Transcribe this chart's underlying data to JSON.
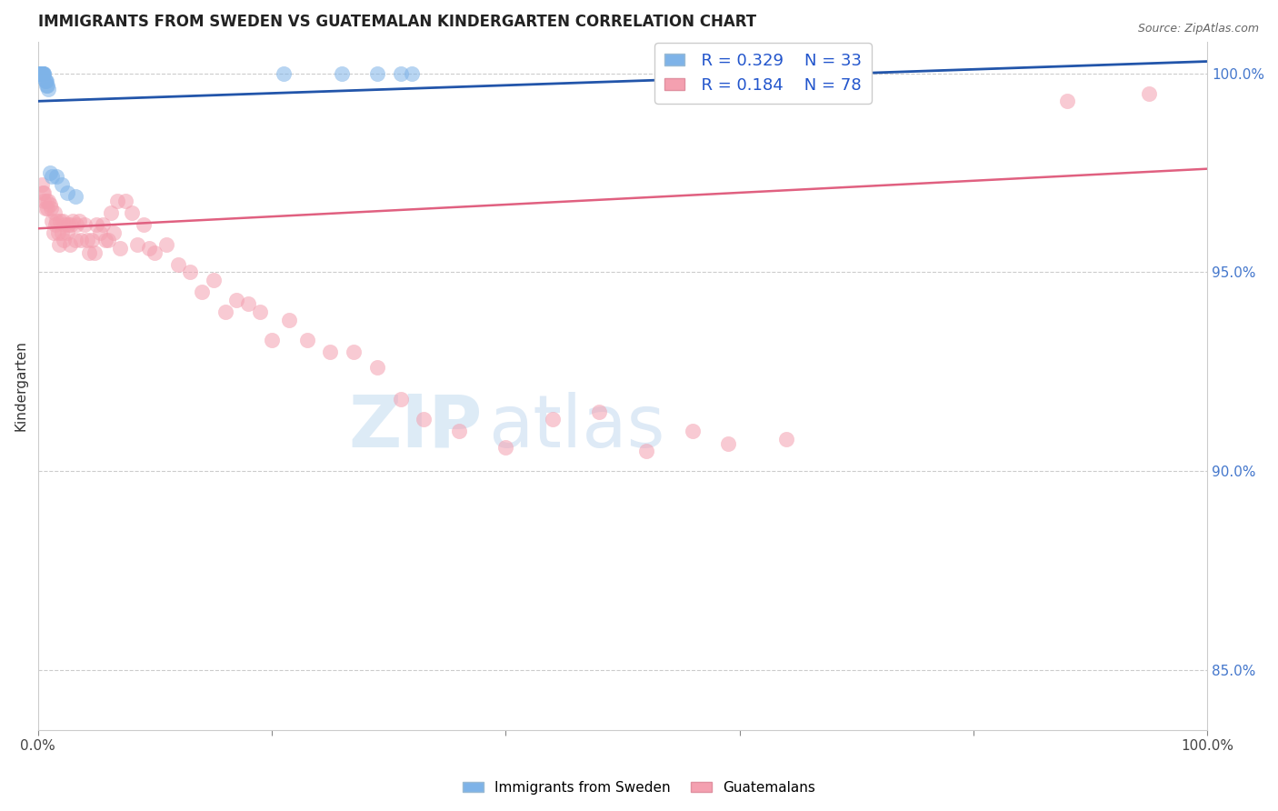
{
  "title": "IMMIGRANTS FROM SWEDEN VS GUATEMALAN KINDERGARTEN CORRELATION CHART",
  "source": "Source: ZipAtlas.com",
  "ylabel": "Kindergarten",
  "legend_blue_r": "R = 0.329",
  "legend_blue_n": "N = 33",
  "legend_pink_r": "R = 0.184",
  "legend_pink_n": "N = 78",
  "blue_color": "#7EB3E8",
  "pink_color": "#F4A0B0",
  "blue_line_color": "#2255AA",
  "pink_line_color": "#E06080",
  "xlim": [
    0.0,
    1.0
  ],
  "ylim": [
    0.835,
    1.008
  ],
  "ytick_positions": [
    0.85,
    0.9,
    0.95,
    1.0
  ],
  "ytick_labels": [
    "85.0%",
    "90.0%",
    "95.0%",
    "100.0%"
  ],
  "xtick_positions": [
    0.0,
    0.2,
    0.4,
    0.6,
    0.8,
    1.0
  ],
  "sweden_x": [
    0.001,
    0.001,
    0.002,
    0.002,
    0.002,
    0.002,
    0.003,
    0.003,
    0.003,
    0.003,
    0.003,
    0.004,
    0.004,
    0.004,
    0.005,
    0.005,
    0.006,
    0.006,
    0.007,
    0.007,
    0.008,
    0.009,
    0.01,
    0.012,
    0.016,
    0.02,
    0.025,
    0.032,
    0.21,
    0.26,
    0.29,
    0.31,
    0.32
  ],
  "sweden_y": [
    1.0,
    1.0,
    1.0,
    1.0,
    1.0,
    1.0,
    1.0,
    1.0,
    1.0,
    1.0,
    1.0,
    1.0,
    1.0,
    1.0,
    1.0,
    1.0,
    0.998,
    0.998,
    0.998,
    0.997,
    0.997,
    0.996,
    0.975,
    0.974,
    0.974,
    0.972,
    0.97,
    0.969,
    1.0,
    1.0,
    1.0,
    1.0,
    1.0
  ],
  "guatemala_x": [
    0.003,
    0.004,
    0.005,
    0.005,
    0.006,
    0.007,
    0.008,
    0.009,
    0.01,
    0.011,
    0.012,
    0.013,
    0.014,
    0.015,
    0.016,
    0.017,
    0.018,
    0.019,
    0.02,
    0.021,
    0.022,
    0.023,
    0.025,
    0.026,
    0.027,
    0.028,
    0.03,
    0.032,
    0.033,
    0.035,
    0.037,
    0.04,
    0.042,
    0.044,
    0.046,
    0.048,
    0.05,
    0.053,
    0.055,
    0.058,
    0.06,
    0.062,
    0.065,
    0.068,
    0.07,
    0.075,
    0.08,
    0.085,
    0.09,
    0.095,
    0.1,
    0.11,
    0.12,
    0.13,
    0.14,
    0.15,
    0.16,
    0.17,
    0.18,
    0.19,
    0.2,
    0.215,
    0.23,
    0.25,
    0.27,
    0.29,
    0.31,
    0.33,
    0.36,
    0.4,
    0.44,
    0.48,
    0.52,
    0.56,
    0.59,
    0.64,
    0.88,
    0.95
  ],
  "guatemala_y": [
    0.972,
    0.97,
    0.968,
    0.97,
    0.966,
    0.968,
    0.966,
    0.968,
    0.967,
    0.966,
    0.963,
    0.96,
    0.965,
    0.962,
    0.963,
    0.96,
    0.957,
    0.963,
    0.96,
    0.963,
    0.958,
    0.962,
    0.96,
    0.962,
    0.957,
    0.962,
    0.963,
    0.958,
    0.962,
    0.963,
    0.958,
    0.962,
    0.958,
    0.955,
    0.958,
    0.955,
    0.962,
    0.96,
    0.962,
    0.958,
    0.958,
    0.965,
    0.96,
    0.968,
    0.956,
    0.968,
    0.965,
    0.957,
    0.962,
    0.956,
    0.955,
    0.957,
    0.952,
    0.95,
    0.945,
    0.948,
    0.94,
    0.943,
    0.942,
    0.94,
    0.933,
    0.938,
    0.933,
    0.93,
    0.93,
    0.926,
    0.918,
    0.913,
    0.91,
    0.906,
    0.913,
    0.915,
    0.905,
    0.91,
    0.907,
    0.908,
    0.993,
    0.995
  ],
  "blue_line_x": [
    0.0,
    1.0
  ],
  "blue_line_y": [
    0.993,
    1.003
  ],
  "pink_line_x": [
    0.0,
    1.0
  ],
  "pink_line_y": [
    0.961,
    0.976
  ]
}
